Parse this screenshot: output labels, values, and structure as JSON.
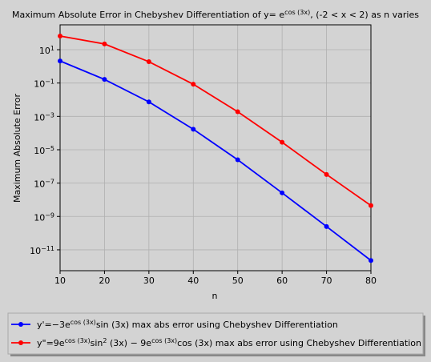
{
  "chart_data": {
    "type": "line",
    "title": [
      {
        "text": "Maximum Absolute Error in Chebyshev Differentiation of y= "
      },
      {
        "text": "e"
      },
      {
        "sup": "cos (3x)"
      },
      {
        "text": ", (-2 < x < 2) as n varies"
      }
    ],
    "xlabel": "n",
    "ylabel": "Maximum Absolute Error",
    "x": [
      10,
      20,
      30,
      40,
      50,
      60,
      70,
      80
    ],
    "series": [
      {
        "name": [
          {
            "text": "y'=−3e"
          },
          {
            "sup": "cos (3x)"
          },
          {
            "text": "sin (3x) max abs error using Chebyshev Differentiation"
          }
        ],
        "color": "#0000ff",
        "values": [
          2.1,
          0.165,
          0.0074,
          0.00017,
          2.5e-06,
          2.6e-08,
          2.5e-10,
          2.3e-12
        ]
      },
      {
        "name": [
          {
            "text": "y\"=9e"
          },
          {
            "sup": "cos (3x)"
          },
          {
            "text": "sin"
          },
          {
            "sup": "2"
          },
          {
            "text": " (3x) − 9e"
          },
          {
            "sup": "cos (3x)"
          },
          {
            "text": "cos (3x) max abs error using Chebyshev Differentiation"
          }
        ],
        "color": "#ff0000",
        "values": [
          66,
          22,
          1.9,
          0.085,
          0.0019,
          2.8e-05,
          3.3e-07,
          4.5e-09
        ]
      }
    ],
    "xlim": [
      10,
      80
    ],
    "xticks": [
      10,
      20,
      30,
      40,
      50,
      60,
      70,
      80
    ],
    "ylim": [
      5.6e-13,
      309
    ],
    "yscale": "log",
    "yticks": [
      {
        "value": 10,
        "label": [
          "10",
          "1"
        ]
      },
      {
        "value": 0.1,
        "label": [
          "10",
          "−1"
        ]
      },
      {
        "value": 0.001,
        "label": [
          "10",
          "−3"
        ]
      },
      {
        "value": 1e-05,
        "label": [
          "10",
          "−5"
        ]
      },
      {
        "value": 1e-07,
        "label": [
          "10",
          "−7"
        ]
      },
      {
        "value": 1e-09,
        "label": [
          "10",
          "−9"
        ]
      },
      {
        "value": 1e-11,
        "label": [
          "10",
          "−11"
        ]
      }
    ],
    "grid": true,
    "legend": "lower center"
  }
}
